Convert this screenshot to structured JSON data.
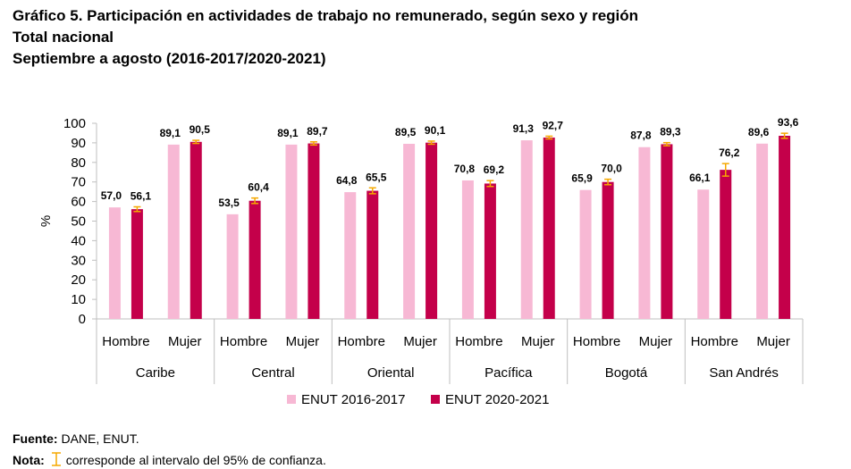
{
  "header": {
    "line1": "Gráfico 5. Participación en actividades de trabajo no remunerado, según sexo y región",
    "line2": "Total nacional",
    "line3": "Septiembre a agosto (2016-2017/2020-2021)"
  },
  "chart_data": {
    "type": "bar",
    "ylabel": "%",
    "ylim": [
      0,
      100
    ],
    "yticks": [
      0,
      10,
      20,
      30,
      40,
      50,
      60,
      70,
      80,
      90,
      100
    ],
    "grid": false,
    "legend_position": "bottom",
    "groups": [
      "Caribe",
      "Central",
      "Oriental",
      "Pacífica",
      "Bogotá",
      "San Andrés"
    ],
    "categories": [
      "Hombre",
      "Mujer",
      "Hombre",
      "Mujer",
      "Hombre",
      "Mujer",
      "Hombre",
      "Mujer",
      "Hombre",
      "Mujer",
      "Hombre",
      "Mujer"
    ],
    "series": [
      {
        "name": "ENUT 2016-2017",
        "color": "#f7b8d4",
        "values": [
          57.0,
          89.1,
          53.5,
          89.1,
          64.8,
          89.5,
          70.8,
          91.3,
          65.9,
          87.8,
          66.1,
          89.6
        ],
        "labels": [
          "57,0",
          "89,1",
          "53,5",
          "89,1",
          "64,8",
          "89,5",
          "70,8",
          "91,3",
          "65,9",
          "87,8",
          "66,1",
          "89,6"
        ]
      },
      {
        "name": "ENUT 2020-2021",
        "color": "#c4004a",
        "values": [
          56.1,
          90.5,
          60.4,
          89.7,
          65.5,
          90.1,
          69.2,
          92.7,
          70.0,
          89.3,
          76.2,
          93.6
        ],
        "labels": [
          "56,1",
          "90,5",
          "60,4",
          "89,7",
          "65,5",
          "90,1",
          "69,2",
          "92,7",
          "70,0",
          "89,3",
          "76,2",
          "93,6"
        ],
        "error_margin": [
          1.2,
          0.8,
          1.4,
          0.8,
          1.5,
          0.8,
          1.5,
          0.7,
          1.4,
          0.8,
          3.2,
          1.3
        ]
      }
    ],
    "error_bar_color": "#f5a800"
  },
  "footer": {
    "fuente_label": "Fuente:",
    "fuente_text": "DANE, ENUT.",
    "nota_label": "Nota:",
    "nota_text": "corresponde al intervalo del 95% de confianza."
  }
}
